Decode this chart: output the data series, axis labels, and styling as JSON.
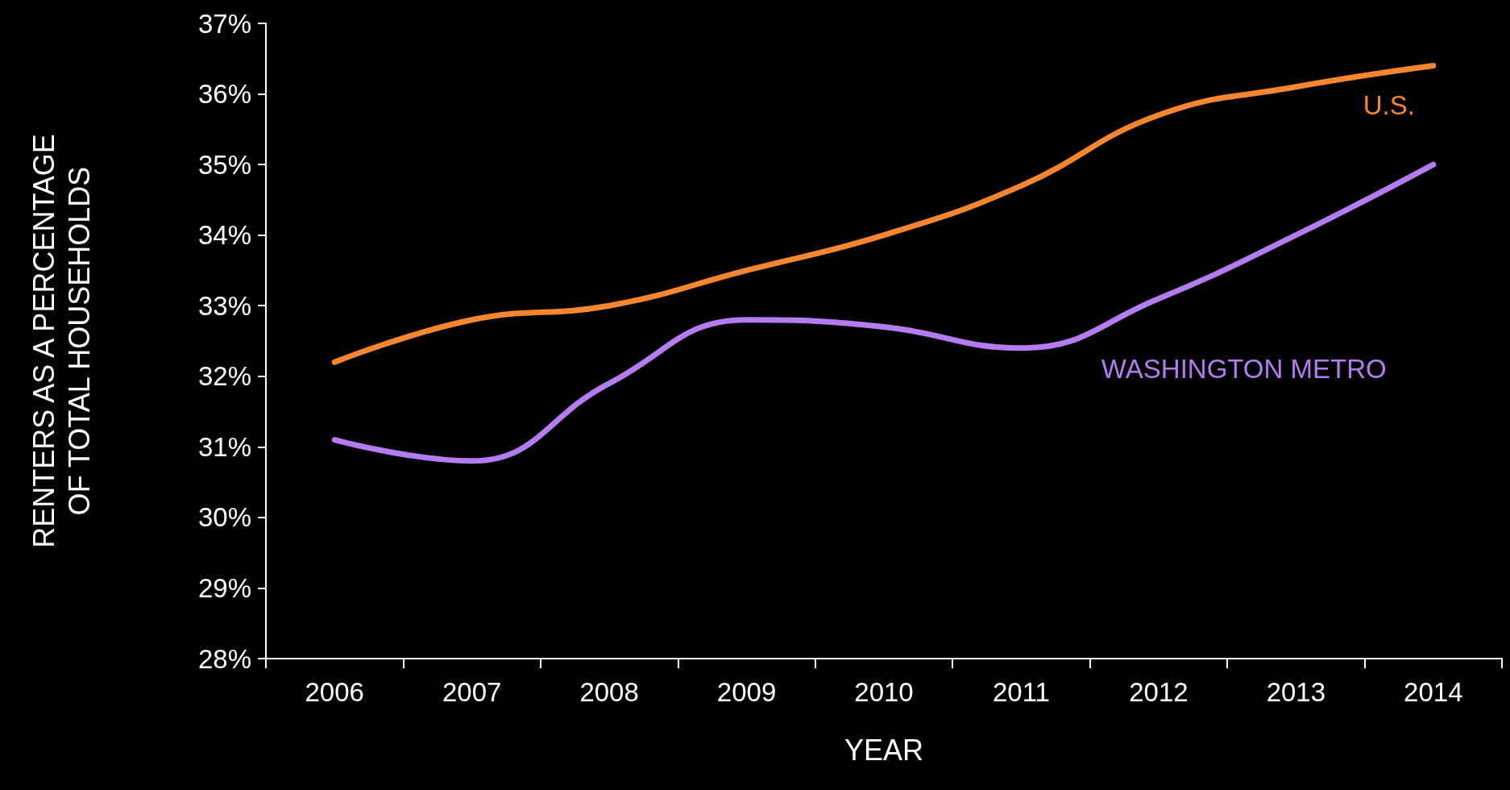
{
  "chart_data": {
    "type": "line",
    "xlabel": "YEAR",
    "ylabel": "RENTERS AS A PERCENTAGE OF TOTAL HOUSEHOLDS",
    "categories": [
      "2006",
      "2007",
      "2008",
      "2009",
      "2010",
      "2011",
      "2012",
      "2013",
      "2014"
    ],
    "series": [
      {
        "name": "U.S.",
        "color": "#f7862f",
        "values": [
          32.2,
          32.8,
          33.0,
          33.5,
          34.0,
          34.7,
          35.7,
          36.1,
          36.4
        ]
      },
      {
        "name": "WASHINGTON METRO",
        "color": "#b57bf0",
        "values": [
          31.1,
          30.8,
          31.9,
          32.8,
          32.7,
          32.4,
          33.1,
          34.0,
          35.0
        ]
      }
    ],
    "ylim": [
      28,
      37
    ],
    "yticks": [
      {
        "value": 28,
        "label": "28%"
      },
      {
        "value": 29,
        "label": "29%"
      },
      {
        "value": 30,
        "label": "30%"
      },
      {
        "value": 31,
        "label": "31%"
      },
      {
        "value": 32,
        "label": "32%"
      },
      {
        "value": 33,
        "label": "33%"
      },
      {
        "value": 34,
        "label": "34%"
      },
      {
        "value": 35,
        "label": "35%"
      },
      {
        "value": 36,
        "label": "36%"
      },
      {
        "value": 37,
        "label": "37%"
      }
    ],
    "grid": false,
    "legend": false,
    "marker": "none",
    "line_style": "solid"
  }
}
